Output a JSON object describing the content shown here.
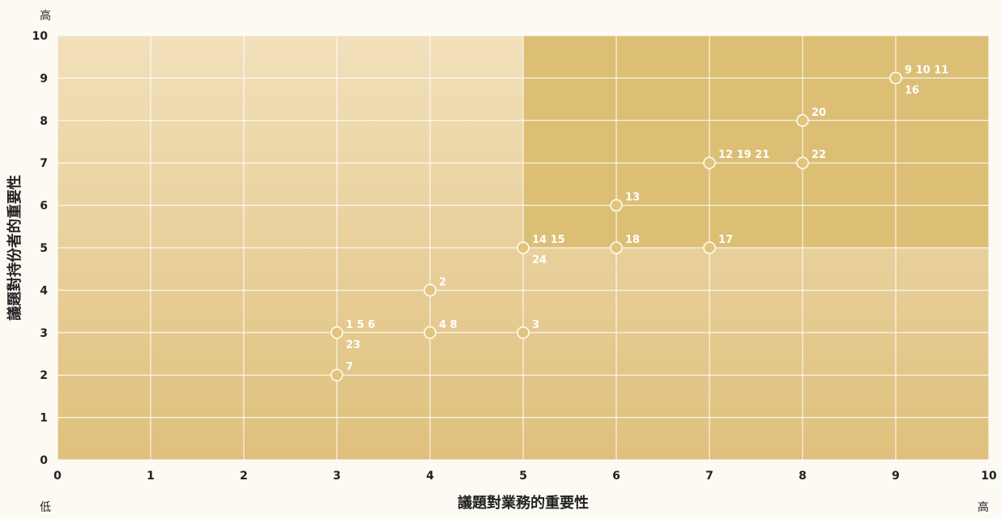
{
  "chart_data": {
    "type": "scatter",
    "xlabel": "議題對業務的重要性",
    "ylabel": "議題對持份者的重要性",
    "xlim": [
      0,
      10
    ],
    "ylim": [
      0,
      10
    ],
    "x_ticks": [
      "0",
      "1",
      "2",
      "3",
      "4",
      "5",
      "6",
      "7",
      "8",
      "9",
      "10"
    ],
    "y_ticks": [
      "0",
      "1",
      "2",
      "3",
      "4",
      "5",
      "6",
      "7",
      "8",
      "9",
      "10"
    ],
    "x_low_label": "低",
    "x_high_label": "高",
    "y_high_label": "高",
    "grid": true,
    "points": [
      {
        "x": 3,
        "y": 2,
        "labels": [
          "7"
        ]
      },
      {
        "x": 3,
        "y": 3,
        "labels": [
          "1 5 6",
          "23"
        ]
      },
      {
        "x": 4,
        "y": 3,
        "labels": [
          "4  8"
        ]
      },
      {
        "x": 4,
        "y": 4,
        "labels": [
          "2"
        ]
      },
      {
        "x": 5,
        "y": 3,
        "labels": [
          "3"
        ]
      },
      {
        "x": 5,
        "y": 5,
        "labels": [
          "14 15",
          "24"
        ]
      },
      {
        "x": 6,
        "y": 5,
        "labels": [
          "18"
        ]
      },
      {
        "x": 6,
        "y": 6,
        "labels": [
          "13"
        ]
      },
      {
        "x": 7,
        "y": 5,
        "labels": [
          "17"
        ]
      },
      {
        "x": 7,
        "y": 7,
        "labels": [
          "12 19 21"
        ]
      },
      {
        "x": 8,
        "y": 7,
        "labels": [
          "22"
        ]
      },
      {
        "x": 8,
        "y": 8,
        "labels": [
          "20"
        ]
      },
      {
        "x": 9,
        "y": 9,
        "labels": [
          "9  10  11",
          "16"
        ]
      }
    ]
  },
  "colors": {
    "page_background": "#fdf9f3",
    "plot_background_top": "#f2e0bb",
    "plot_background_bottom": "#dfc07c",
    "high_quadrant": "#dcbf75",
    "gridline": "#ffffff",
    "marker_fill": "#e2c57c",
    "marker_stroke": "#ffffff",
    "label_text": "#ffffff",
    "axis_text": "#222222"
  }
}
